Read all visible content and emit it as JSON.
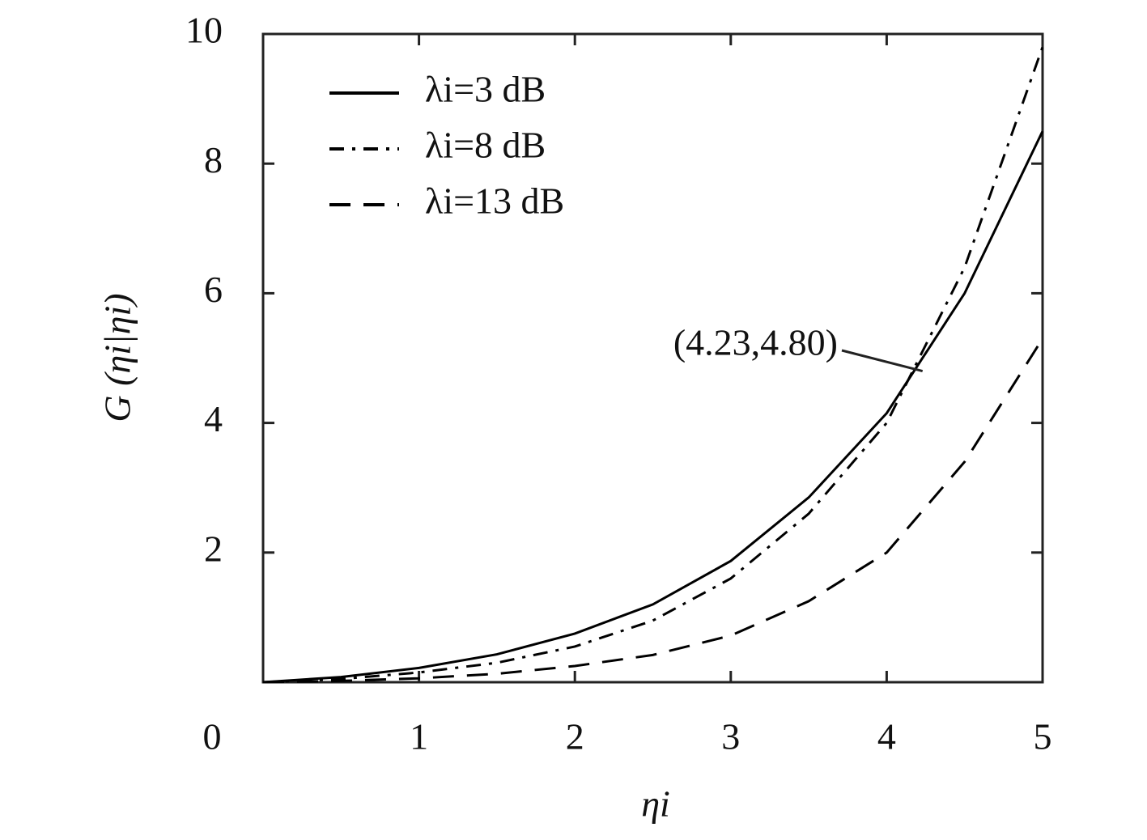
{
  "chart_data": {
    "type": "line",
    "x_label": "ηi",
    "y_label": "G (ηi|ηi)",
    "x": [
      0,
      0.5,
      1,
      1.5,
      2,
      2.5,
      3,
      3.5,
      4,
      4.5,
      5
    ],
    "series": [
      {
        "name": "λi=3 dB",
        "color": "#000000",
        "style": "solid",
        "values": [
          0,
          0.08,
          0.22,
          0.43,
          0.75,
          1.2,
          1.87,
          2.85,
          4.15,
          6.0,
          8.5
        ]
      },
      {
        "name": "λi=8 dB",
        "color": "#000000",
        "style": "dashdot",
        "values": [
          0,
          0.05,
          0.15,
          0.3,
          0.55,
          0.95,
          1.6,
          2.6,
          4.0,
          6.4,
          9.8
        ]
      },
      {
        "name": "λi=13 dB",
        "color": "#000000",
        "style": "dashed",
        "values": [
          0,
          0.02,
          0.06,
          0.13,
          0.25,
          0.42,
          0.72,
          1.25,
          2.0,
          3.4,
          5.3
        ]
      }
    ],
    "xlim": [
      0,
      5
    ],
    "ylim": [
      0,
      10
    ],
    "xticks": [
      0,
      1,
      2,
      3,
      4,
      5
    ],
    "yticks": [
      2,
      4,
      6,
      8,
      10
    ],
    "legend": "upper left",
    "grid": false,
    "annotation": {
      "text": "(4.23,4.80)",
      "x": 4.23,
      "y": 4.8
    }
  }
}
